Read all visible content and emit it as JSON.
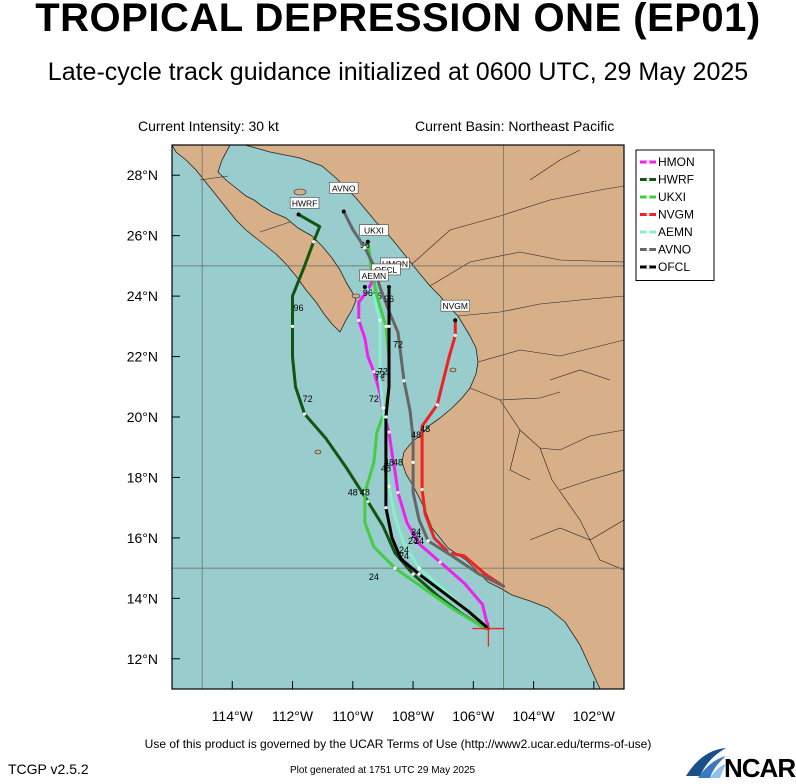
{
  "title": "TROPICAL DEPRESSION ONE (EP01)",
  "subtitle": "Late-cycle track guidance initialized at 0600 UTC, 29 May 2025",
  "current_intensity": "Current Intensity: 30 kt",
  "current_basin": "Current Basin: Northeast Pacific",
  "terms_text": "Use of this product is governed by the UCAR Terms of Use (http://www2.ucar.edu/terms-of-use)",
  "version_text": "TCGP v2.5.2",
  "generated_text": "Plot generated at 1751 UTC  29 May 2025",
  "logo_text": "NCAR",
  "colors": {
    "ocean": "#99cccc",
    "land": "#d7b08a",
    "HMON": "#ee22ee",
    "HWRF": "#115511",
    "UKXI": "#44cc44",
    "NVGM": "#ee2222",
    "AEMN": "#88eecc",
    "AVNO": "#666666",
    "OFCL": "#000000"
  },
  "chart_data": {
    "type": "map",
    "xlim": [
      -116,
      -101
    ],
    "ylim": [
      11,
      29
    ],
    "x_ticks": [
      -114,
      -112,
      -110,
      -108,
      -106,
      -104,
      -102
    ],
    "x_tick_labels": [
      "114°W",
      "112°W",
      "110°W",
      "108°W",
      "106°W",
      "104°W",
      "102°W"
    ],
    "y_ticks": [
      12,
      14,
      16,
      18,
      20,
      22,
      24,
      26,
      28
    ],
    "y_tick_labels": [
      "12°N",
      "14°N",
      "16°N",
      "18°N",
      "20°N",
      "22°N",
      "24°N",
      "26°N",
      "28°N"
    ],
    "grid_lons": [
      -115,
      -105
    ],
    "grid_lats": [
      15,
      25
    ],
    "legend_position": "top-right",
    "legend": [
      "HMON",
      "HWRF",
      "UKXI",
      "NVGM",
      "AEMN",
      "AVNO",
      "OFCL"
    ],
    "initial_position": {
      "lon": -105.5,
      "lat": 13.0
    },
    "tracks": [
      {
        "name": "HMON",
        "color": "#ee22ee",
        "points": [
          [
            -105.5,
            13.0
          ],
          [
            -105.7,
            13.8
          ],
          [
            -106.3,
            14.5
          ],
          [
            -107.1,
            15.2
          ],
          [
            -107.8,
            15.8
          ],
          [
            -108.2,
            16.5
          ],
          [
            -108.5,
            17.5
          ],
          [
            -108.6,
            18.2
          ],
          [
            -108.7,
            18.8
          ],
          [
            -108.8,
            19.5
          ],
          [
            -109.0,
            20.2
          ],
          [
            -109.1,
            20.8
          ],
          [
            -109.3,
            21.5
          ],
          [
            -109.5,
            22.0
          ],
          [
            -109.6,
            22.6
          ],
          [
            -109.8,
            23.2
          ],
          [
            -109.8,
            23.8
          ],
          [
            -109.5,
            24.2
          ],
          [
            -109.3,
            24.6
          ]
        ],
        "labels": [
          {
            "text": "24",
            "lon": -108.0,
            "lat": 15.8
          },
          {
            "text": "48",
            "lon": -108.5,
            "lat": 18.4
          },
          {
            "text": "72",
            "lon": -109.1,
            "lat": 21.2
          },
          {
            "text": "96",
            "lon": -109.2,
            "lat": 23.9
          }
        ]
      },
      {
        "name": "HWRF",
        "color": "#115511",
        "points": [
          [
            -105.6,
            13.0
          ],
          [
            -106.4,
            13.5
          ],
          [
            -107.2,
            14.1
          ],
          [
            -108.0,
            14.8
          ],
          [
            -108.6,
            15.5
          ],
          [
            -109.0,
            16.4
          ],
          [
            -109.5,
            17.2
          ],
          [
            -110.2,
            18.3
          ],
          [
            -110.9,
            19.3
          ],
          [
            -111.6,
            20.1
          ],
          [
            -111.9,
            21.0
          ],
          [
            -112.0,
            22.0
          ],
          [
            -112.0,
            23.0
          ],
          [
            -112.0,
            24.0
          ],
          [
            -111.6,
            25.0
          ],
          [
            -111.3,
            25.8
          ],
          [
            -111.1,
            26.3
          ],
          [
            -111.8,
            26.7
          ]
        ],
        "labels": [
          {
            "text": "24",
            "lon": -108.3,
            "lat": 15.3
          },
          {
            "text": "48",
            "lon": -110.0,
            "lat": 17.4
          },
          {
            "text": "72",
            "lon": -111.5,
            "lat": 20.5
          },
          {
            "text": "96",
            "lon": -111.8,
            "lat": 23.5
          }
        ]
      },
      {
        "name": "UKXI",
        "color": "#44cc44",
        "points": [
          [
            -105.6,
            13.0
          ],
          [
            -106.6,
            13.6
          ],
          [
            -107.6,
            14.3
          ],
          [
            -108.6,
            15.0
          ],
          [
            -109.3,
            15.7
          ],
          [
            -109.6,
            16.5
          ],
          [
            -109.6,
            17.5
          ],
          [
            -109.3,
            18.5
          ],
          [
            -109.2,
            19.5
          ],
          [
            -108.9,
            20.3
          ],
          [
            -108.8,
            21.0
          ],
          [
            -108.8,
            22.0
          ],
          [
            -108.9,
            23.0
          ],
          [
            -109.2,
            24.0
          ],
          [
            -109.4,
            25.0
          ],
          [
            -109.5,
            25.8
          ]
        ],
        "labels": [
          {
            "text": "24",
            "lon": -109.3,
            "lat": 14.6
          },
          {
            "text": "48",
            "lon": -109.6,
            "lat": 17.4
          },
          {
            "text": "72",
            "lon": -109.3,
            "lat": 20.5
          },
          {
            "text": "96",
            "lon": -109.6,
            "lat": 25.6
          }
        ]
      },
      {
        "name": "NVGM",
        "color": "#ee2222",
        "points": [
          [
            -105.0,
            14.4
          ],
          [
            -105.6,
            14.8
          ],
          [
            -106.3,
            15.4
          ],
          [
            -106.8,
            15.5
          ],
          [
            -107.3,
            16.0
          ],
          [
            -107.6,
            16.8
          ],
          [
            -107.7,
            17.6
          ],
          [
            -107.7,
            18.5
          ],
          [
            -107.7,
            19.7
          ],
          [
            -107.2,
            20.4
          ],
          [
            -107.0,
            21.2
          ],
          [
            -106.8,
            22.0
          ],
          [
            -106.6,
            22.7
          ],
          [
            -106.6,
            23.2
          ]
        ],
        "labels": [
          {
            "text": "24",
            "lon": -107.9,
            "lat": 16.0
          },
          {
            "text": "48",
            "lon": -107.6,
            "lat": 19.5
          }
        ]
      },
      {
        "name": "AEMN",
        "color": "#88eecc",
        "points": [
          [
            -105.5,
            13.0
          ],
          [
            -106.3,
            13.7
          ],
          [
            -107.0,
            14.3
          ],
          [
            -107.8,
            15.0
          ],
          [
            -108.3,
            15.8
          ],
          [
            -108.6,
            16.7
          ],
          [
            -108.8,
            17.7
          ],
          [
            -108.9,
            18.5
          ],
          [
            -108.9,
            19.4
          ],
          [
            -109.0,
            20.3
          ],
          [
            -109.1,
            21.3
          ],
          [
            -109.1,
            22.3
          ],
          [
            -109.1,
            23.2
          ],
          [
            -109.3,
            24.0
          ],
          [
            -109.6,
            24.3
          ]
        ],
        "labels": [
          {
            "text": "24",
            "lon": -107.9,
            "lat": 16.1
          },
          {
            "text": "48",
            "lon": -108.8,
            "lat": 18.4
          },
          {
            "text": "72",
            "lon": -109.1,
            "lat": 21.3
          },
          {
            "text": "96",
            "lon": -109.5,
            "lat": 24.0
          }
        ]
      },
      {
        "name": "AVNO",
        "color": "#666666",
        "points": [
          [
            -105.0,
            14.4
          ],
          [
            -105.8,
            14.8
          ],
          [
            -106.7,
            15.4
          ],
          [
            -107.5,
            15.9
          ],
          [
            -107.8,
            16.6
          ],
          [
            -108.0,
            17.5
          ],
          [
            -108.0,
            18.5
          ],
          [
            -108.0,
            19.3
          ],
          [
            -108.1,
            20.2
          ],
          [
            -108.3,
            21.2
          ],
          [
            -108.4,
            22.0
          ],
          [
            -108.5,
            22.8
          ],
          [
            -108.8,
            23.5
          ],
          [
            -109.1,
            24.3
          ],
          [
            -109.3,
            25.0
          ],
          [
            -109.6,
            25.6
          ],
          [
            -110.0,
            26.2
          ],
          [
            -110.3,
            26.8
          ]
        ],
        "labels": [
          {
            "text": "24",
            "lon": -107.8,
            "lat": 15.8
          },
          {
            "text": "48",
            "lon": -107.9,
            "lat": 19.3
          },
          {
            "text": "72",
            "lon": -108.5,
            "lat": 22.3
          },
          {
            "text": "96",
            "lon": -109.1,
            "lat": 24.7
          }
        ]
      },
      {
        "name": "OFCL",
        "color": "#000000",
        "points": [
          [
            -105.5,
            13.0
          ],
          [
            -106.2,
            13.6
          ],
          [
            -107.0,
            14.2
          ],
          [
            -107.8,
            14.8
          ],
          [
            -108.4,
            15.3
          ],
          [
            -108.7,
            16.0
          ],
          [
            -108.9,
            17.0
          ],
          [
            -108.9,
            18.0
          ],
          [
            -108.9,
            19.0
          ],
          [
            -108.9,
            20.0
          ],
          [
            -108.8,
            21.0
          ],
          [
            -108.8,
            22.0
          ],
          [
            -108.8,
            23.0
          ],
          [
            -108.8,
            24.0
          ],
          [
            -108.8,
            24.3
          ]
        ],
        "labels": [
          {
            "text": "24",
            "lon": -108.3,
            "lat": 15.5
          },
          {
            "text": "48",
            "lon": -108.9,
            "lat": 18.2
          },
          {
            "text": "72",
            "lon": -109.0,
            "lat": 21.4
          },
          {
            "text": "96",
            "lon": -108.8,
            "lat": 23.8
          }
        ]
      }
    ],
    "end_labels": [
      {
        "text": "HWRF",
        "lon": -111.6,
        "lat": 27.0
      },
      {
        "text": "AVNO",
        "lon": -110.3,
        "lat": 27.5
      },
      {
        "text": "UKXI",
        "lon": -109.3,
        "lat": 26.1
      },
      {
        "text": "HMON",
        "lon": -108.6,
        "lat": 25.0
      },
      {
        "text": "OFCL",
        "lon": -108.9,
        "lat": 24.8
      },
      {
        "text": "AEMN",
        "lon": -109.3,
        "lat": 24.6
      },
      {
        "text": "NVGM",
        "lon": -106.6,
        "lat": 23.6
      }
    ]
  }
}
